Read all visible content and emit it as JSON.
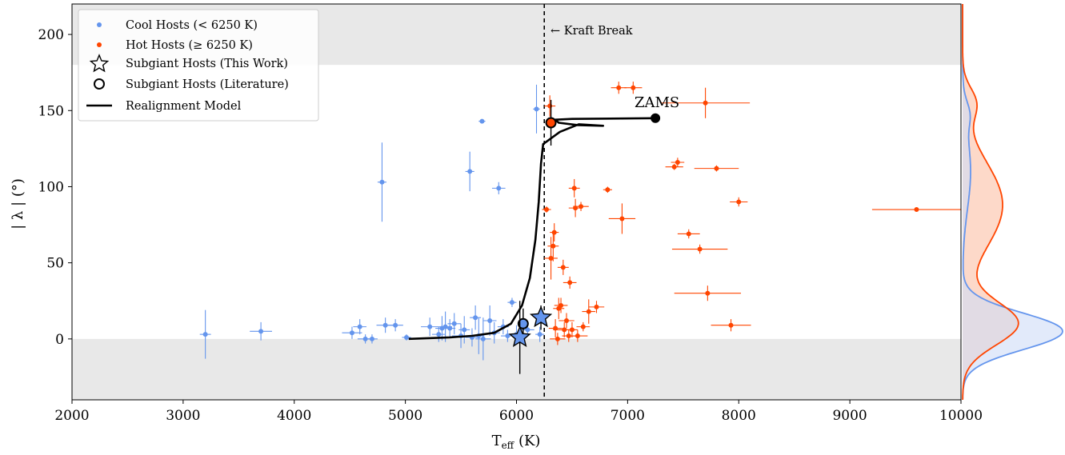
{
  "chart_data": {
    "type": "scatter",
    "xlabel_main": "T",
    "xlabel_sub": "eff",
    "xlabel_unit": " (K)",
    "ylabel": "| λ | (°)",
    "xlim": [
      2000,
      10000
    ],
    "ylim": [
      -40,
      220
    ],
    "xticks": [
      2000,
      3000,
      4000,
      5000,
      6000,
      7000,
      8000,
      9000,
      10000
    ],
    "yticks": [
      0,
      50,
      100,
      150,
      200
    ],
    "shaded_bands": [
      [
        -40,
        0
      ],
      [
        180,
        220
      ]
    ],
    "kraft_break": {
      "x": 6250,
      "label": "← Kraft Break"
    },
    "zams_label": "ZAMS",
    "colors": {
      "cool": "#6495ED",
      "hot": "#FF4500",
      "shade": "#e8e8e8",
      "model": "#000000",
      "hot_kde_fill": "#fdd2bf",
      "cool_kde_fill": "#cfdcf6"
    },
    "legend": [
      {
        "label": "Cool Hosts (< 6250 K)",
        "marker": "dot-cool"
      },
      {
        "label": "Hot Hosts (≥ 6250 K)",
        "marker": "dot-hot"
      },
      {
        "label": "Subgiant Hosts (This Work)",
        "marker": "star-outline"
      },
      {
        "label": "Subgiant Hosts (Literature)",
        "marker": "circle-outline"
      },
      {
        "label": "Realignment Model",
        "marker": "line"
      }
    ],
    "series": [
      {
        "name": "Cool Hosts (< 6250 K)",
        "points": [
          {
            "x": 3200,
            "y": 3,
            "xerr": 50,
            "yerr": 16
          },
          {
            "x": 3700,
            "y": 5,
            "xerr": 100,
            "yerr": 6
          },
          {
            "x": 4520,
            "y": 4,
            "xerr": 90,
            "yerr": 4
          },
          {
            "x": 4590,
            "y": 8,
            "xerr": 60,
            "yerr": 5
          },
          {
            "x": 4640,
            "y": 0,
            "xerr": 70,
            "yerr": 3
          },
          {
            "x": 4700,
            "y": 0,
            "xerr": 50,
            "yerr": 3
          },
          {
            "x": 4790,
            "y": 103,
            "xerr": 40,
            "yerr": 26
          },
          {
            "x": 4820,
            "y": 9,
            "xerr": 80,
            "yerr": 5
          },
          {
            "x": 4910,
            "y": 9,
            "xerr": 70,
            "yerr": 4
          },
          {
            "x": 5010,
            "y": 1,
            "xerr": 40,
            "yerr": 2
          },
          {
            "x": 5220,
            "y": 8,
            "xerr": 80,
            "yerr": 6
          },
          {
            "x": 5300,
            "y": 3,
            "xerr": 60,
            "yerr": 5
          },
          {
            "x": 5330,
            "y": 7,
            "xerr": 60,
            "yerr": 8
          },
          {
            "x": 5360,
            "y": 8,
            "xerr": 60,
            "yerr": 10
          },
          {
            "x": 5400,
            "y": 7,
            "xerr": 50,
            "yerr": 6
          },
          {
            "x": 5440,
            "y": 10,
            "xerr": 60,
            "yerr": 7
          },
          {
            "x": 5500,
            "y": 2,
            "xerr": 80,
            "yerr": 8
          },
          {
            "x": 5530,
            "y": 6,
            "xerr": 50,
            "yerr": 9
          },
          {
            "x": 5580,
            "y": 110,
            "xerr": 40,
            "yerr": 13
          },
          {
            "x": 5600,
            "y": 1,
            "xerr": 60,
            "yerr": 6
          },
          {
            "x": 5630,
            "y": 14,
            "xerr": 50,
            "yerr": 8
          },
          {
            "x": 5660,
            "y": 2,
            "xerr": 50,
            "yerr": 12
          },
          {
            "x": 5690,
            "y": 143,
            "xerr": 30,
            "yerr": 1
          },
          {
            "x": 5700,
            "y": 0,
            "xerr": 70,
            "yerr": 14
          },
          {
            "x": 5760,
            "y": 12,
            "xerr": 60,
            "yerr": 10
          },
          {
            "x": 5800,
            "y": 4,
            "xerr": 50,
            "yerr": 7
          },
          {
            "x": 5840,
            "y": 99,
            "xerr": 60,
            "yerr": 4
          },
          {
            "x": 5880,
            "y": 8,
            "xerr": 50,
            "yerr": 5
          },
          {
            "x": 5920,
            "y": 2,
            "xerr": 60,
            "yerr": 4
          },
          {
            "x": 5960,
            "y": 24,
            "xerr": 40,
            "yerr": 3
          },
          {
            "x": 6000,
            "y": 3,
            "xerr": 50,
            "yerr": 6
          },
          {
            "x": 6100,
            "y": 6,
            "xerr": 60,
            "yerr": 4
          },
          {
            "x": 6180,
            "y": 151,
            "xerr": 30,
            "yerr": 16
          },
          {
            "x": 6210,
            "y": 3,
            "xerr": 40,
            "yerr": 5
          }
        ]
      },
      {
        "name": "Hot Hosts (≥ 6250 K)",
        "points": [
          {
            "x": 6270,
            "y": 85,
            "xerr": 40,
            "yerr": 2
          },
          {
            "x": 6300,
            "y": 153,
            "xerr": 50,
            "yerr": 7
          },
          {
            "x": 6310,
            "y": 53,
            "xerr": 60,
            "yerr": 14
          },
          {
            "x": 6330,
            "y": 61,
            "xerr": 50,
            "yerr": 10
          },
          {
            "x": 6340,
            "y": 70,
            "xerr": 40,
            "yerr": 6
          },
          {
            "x": 6350,
            "y": 7,
            "xerr": 60,
            "yerr": 6
          },
          {
            "x": 6370,
            "y": 0,
            "xerr": 70,
            "yerr": 4
          },
          {
            "x": 6380,
            "y": 20,
            "xerr": 50,
            "yerr": 7
          },
          {
            "x": 6400,
            "y": 22,
            "xerr": 60,
            "yerr": 5
          },
          {
            "x": 6420,
            "y": 47,
            "xerr": 50,
            "yerr": 5
          },
          {
            "x": 6430,
            "y": 6,
            "xerr": 100,
            "yerr": 5
          },
          {
            "x": 6450,
            "y": 12,
            "xerr": 70,
            "yerr": 5
          },
          {
            "x": 6470,
            "y": 2,
            "xerr": 60,
            "yerr": 4
          },
          {
            "x": 6480,
            "y": 37,
            "xerr": 60,
            "yerr": 4
          },
          {
            "x": 6500,
            "y": 6,
            "xerr": 50,
            "yerr": 5
          },
          {
            "x": 6520,
            "y": 99,
            "xerr": 50,
            "yerr": 6
          },
          {
            "x": 6530,
            "y": 86,
            "xerr": 60,
            "yerr": 6
          },
          {
            "x": 6550,
            "y": 2,
            "xerr": 90,
            "yerr": 4
          },
          {
            "x": 6580,
            "y": 87,
            "xerr": 70,
            "yerr": 3
          },
          {
            "x": 6600,
            "y": 8,
            "xerr": 60,
            "yerr": 3
          },
          {
            "x": 6650,
            "y": 18,
            "xerr": 60,
            "yerr": 8
          },
          {
            "x": 6720,
            "y": 21,
            "xerr": 70,
            "yerr": 4
          },
          {
            "x": 6820,
            "y": 98,
            "xerr": 40,
            "yerr": 2
          },
          {
            "x": 6920,
            "y": 165,
            "xerr": 70,
            "yerr": 4
          },
          {
            "x": 6950,
            "y": 79,
            "xerr": 120,
            "yerr": 10
          },
          {
            "x": 7050,
            "y": 165,
            "xerr": 80,
            "yerr": 4
          },
          {
            "x": 7420,
            "y": 113,
            "xerr": 80,
            "yerr": 2
          },
          {
            "x": 7450,
            "y": 116,
            "xerr": 60,
            "yerr": 3
          },
          {
            "x": 7550,
            "y": 69,
            "xerr": 100,
            "yerr": 3
          },
          {
            "x": 7650,
            "y": 59,
            "xerr": 250,
            "yerr": 3
          },
          {
            "x": 7700,
            "y": 155,
            "xerr": 400,
            "yerr": 10
          },
          {
            "x": 7720,
            "y": 30,
            "xerr": 300,
            "yerr": 5
          },
          {
            "x": 7800,
            "y": 112,
            "xerr": 200,
            "yerr": 2
          },
          {
            "x": 7930,
            "y": 9,
            "xerr": 180,
            "yerr": 4
          },
          {
            "x": 8000,
            "y": 90,
            "xerr": 80,
            "yerr": 3
          },
          {
            "x": 9600,
            "y": 85,
            "xerr": 400,
            "yerr": 1
          }
        ]
      },
      {
        "name": "Subgiant Hosts (This Work)",
        "points": [
          {
            "x": 6030,
            "y": 1,
            "xerr": 0,
            "yerr": 24,
            "color": "cool"
          },
          {
            "x": 6220,
            "y": 14,
            "xerr": 0,
            "yerr": 8,
            "color": "cool"
          }
        ]
      },
      {
        "name": "Subgiant Hosts (Literature)",
        "points": [
          {
            "x": 6060,
            "y": 10,
            "xerr": 0,
            "yerr": 10,
            "color": "cool"
          },
          {
            "x": 6310,
            "y": 142,
            "xerr": 0,
            "yerr": 15,
            "color": "hot"
          }
        ]
      },
      {
        "name": "Realignment Model",
        "line": [
          [
            5030,
            0
          ],
          [
            5200,
            0.5
          ],
          [
            5400,
            1
          ],
          [
            5600,
            2
          ],
          [
            5800,
            4
          ],
          [
            5950,
            10
          ],
          [
            6050,
            22
          ],
          [
            6120,
            40
          ],
          [
            6170,
            65
          ],
          [
            6200,
            90
          ],
          [
            6220,
            115
          ],
          [
            6240,
            128
          ],
          [
            6390,
            136
          ],
          [
            6560,
            141
          ],
          [
            6780,
            140
          ],
          [
            6550,
            140.5
          ],
          [
            6380,
            142
          ],
          [
            6350,
            144
          ],
          [
            6500,
            144.5
          ],
          [
            7250,
            145
          ]
        ],
        "zams_point": {
          "x": 7250,
          "y": 145
        }
      }
    ],
    "kde_panel": {
      "hot_peaks": [
        {
          "center": 10,
          "width": 14,
          "weight": 0.55
        },
        {
          "center": 88,
          "width": 28,
          "weight": 0.4
        },
        {
          "center": 155,
          "width": 10,
          "weight": 0.12
        }
      ],
      "cool_peaks": [
        {
          "center": 5,
          "width": 12,
          "weight": 1.0
        },
        {
          "center": 110,
          "width": 25,
          "weight": 0.08
        },
        {
          "center": 148,
          "width": 8,
          "weight": 0.05
        }
      ]
    }
  }
}
